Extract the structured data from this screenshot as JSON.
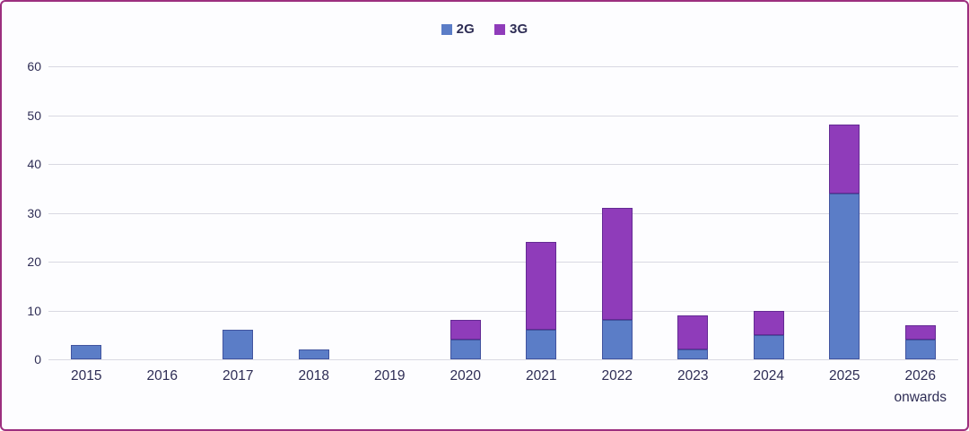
{
  "colors": {
    "border": "#9c2f7f",
    "background": "#fdfdff",
    "grid": "#d9d9e2",
    "text": "#2e2d55",
    "bar_2g": "#5b7dc7",
    "bar_3g": "#8f3cba"
  },
  "legend": {
    "items": [
      {
        "label": "2G",
        "color": "#5b7dc7"
      },
      {
        "label": "3G",
        "color": "#8f3cba"
      }
    ]
  },
  "chart_data": {
    "type": "bar",
    "stacked": true,
    "title": "",
    "xlabel": "",
    "ylabel": "",
    "categories": [
      "2015",
      "2016",
      "2017",
      "2018",
      "2019",
      "2020",
      "2021",
      "2022",
      "2023",
      "2024",
      "2025",
      "2026 onwards"
    ],
    "series": [
      {
        "name": "2G",
        "color": "#5b7dc7",
        "border_color": "#41549f",
        "values": [
          3,
          0,
          6,
          2,
          0,
          4,
          6,
          8,
          2,
          5,
          34,
          4
        ]
      },
      {
        "name": "3G",
        "color": "#8f3cba",
        "border_color": "#642a94",
        "values": [
          0,
          0,
          0,
          0,
          0,
          4,
          18,
          23,
          7,
          5,
          14,
          3
        ]
      }
    ],
    "totals": [
      3,
      0,
      6,
      2,
      0,
      8,
      24,
      31,
      9,
      10,
      48,
      7
    ],
    "ylim": [
      0,
      60
    ],
    "yticks": [
      0,
      10,
      20,
      30,
      40,
      50,
      60
    ],
    "legend_position": "top-center",
    "grid": true
  }
}
